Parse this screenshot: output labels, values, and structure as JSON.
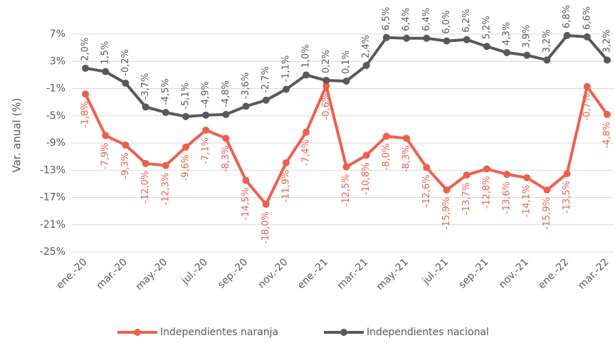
{
  "chart_data": {
    "type": "line",
    "y_label": "Var. anual (%)",
    "categories": [
      "ene.-20",
      null,
      "mar.-20",
      null,
      "may.-20",
      null,
      "jul.-20",
      null,
      "sep.-20",
      null,
      "nov.-20",
      null,
      "ene.-21",
      null,
      "mar.-21",
      null,
      "may.-21",
      null,
      "jul.-21",
      null,
      "sep.-21",
      null,
      "nov.-21",
      null,
      "ene.-22",
      null,
      "mar.-22"
    ],
    "series": [
      {
        "name": "Independientes naranja",
        "color": "#ef5f4e",
        "values": [
          -1.8,
          -7.9,
          -9.3,
          -12.0,
          -12.3,
          -9.6,
          -7.1,
          -8.3,
          -14.5,
          -18.0,
          -11.9,
          -7.4,
          -0.6,
          -12.5,
          -10.8,
          -8.0,
          -8.3,
          -12.6,
          -15.9,
          -13.7,
          -12.8,
          -13.6,
          -14.1,
          -15.9,
          -13.5,
          -0.7,
          -4.8
        ],
        "value_labels": [
          "-1,8%",
          "-7,9%",
          "-9,3%",
          "-12,0%",
          "-12,3%",
          "-9,6%",
          "-7,1%",
          "-8,3%",
          "-14,5%",
          "-18,0%",
          "-11,9%",
          "-7,4%",
          "-0,6%",
          "-12,5%",
          "-10,8%",
          "-8,0%",
          "-8,3%",
          "-12,6%",
          "-15,9%",
          "-13,7%",
          "-12,8%",
          "-13,6%",
          "-14,1%",
          "-15,9%",
          "-13,5%",
          "-0,7%",
          "-4,8%"
        ]
      },
      {
        "name": "Independientes nacional",
        "color": "#595959",
        "values": [
          2.0,
          1.5,
          -0.2,
          -3.7,
          -4.5,
          -5.1,
          -4.9,
          -4.8,
          -3.6,
          -2.7,
          -1.1,
          1.0,
          0.2,
          0.1,
          2.4,
          6.5,
          6.4,
          6.4,
          6.0,
          6.2,
          5.2,
          4.3,
          3.9,
          3.2,
          6.8,
          6.6,
          3.2
        ],
        "value_labels": [
          "2,0%",
          "1,5%",
          "-0,2%",
          "-3,7%",
          "-4,5%",
          "-5,1%",
          "-4,9%",
          "-4,8%",
          "-3,6%",
          "-2,7%",
          "-1,1%",
          "1,0%",
          "0,2%",
          "0,1%",
          "2,4%",
          "6,5%",
          "6,4%",
          "6,4%",
          "6,0%",
          "6,2%",
          "5,2%",
          "4,3%",
          "3,9%",
          "3,2%",
          "6,8%",
          "6,6%",
          "3,2%"
        ]
      }
    ],
    "ylim": [
      -25,
      9
    ],
    "yticks": [
      {
        "value": -25,
        "label": "-25%"
      },
      {
        "value": -21,
        "label": "-21%"
      },
      {
        "value": -17,
        "label": "-17%"
      },
      {
        "value": -13,
        "label": "-13%"
      },
      {
        "value": -9,
        "label": "-9%"
      },
      {
        "value": -5,
        "label": "-5%"
      },
      {
        "value": -1,
        "label": "-1%"
      },
      {
        "value": 3,
        "label": "3%"
      },
      {
        "value": 7,
        "label": "7%"
      }
    ],
    "grid": true,
    "legend": "bottom"
  }
}
